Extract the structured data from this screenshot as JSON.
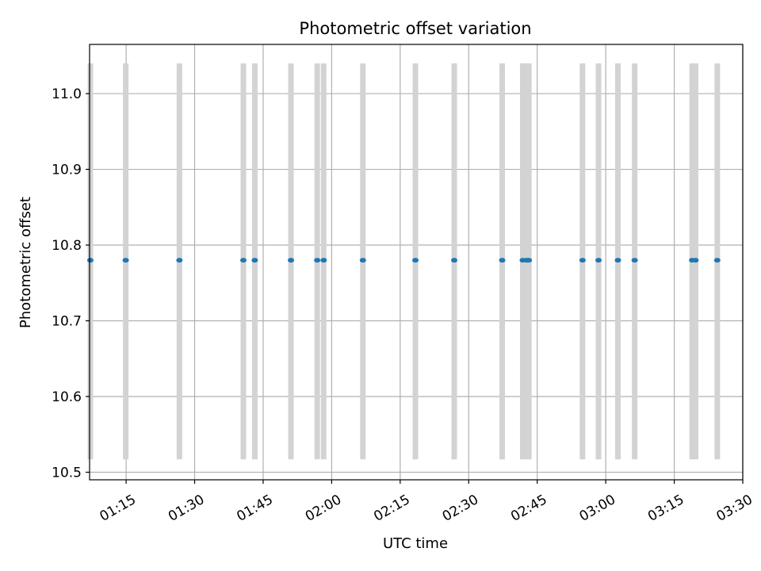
{
  "chart_data": {
    "type": "scatter",
    "title": "Photometric offset variation",
    "xlabel": "UTC time",
    "ylabel": "Photometric offset",
    "x_axis_kind": "time",
    "xlim": [
      "01:07",
      "03:30"
    ],
    "ylim": [
      10.49,
      11.065
    ],
    "x_ticks": [
      "01:15",
      "01:30",
      "01:45",
      "02:00",
      "02:15",
      "02:30",
      "02:45",
      "03:00",
      "03:15",
      "03:30"
    ],
    "y_ticks": [
      "10.5",
      "10.6",
      "10.7",
      "10.8",
      "10.9",
      "11.0"
    ],
    "grid": true,
    "exposure_bands": {
      "color": "#d3d3d3",
      "y_range": [
        10.517,
        11.04
      ],
      "times": [
        "01:07:10",
        "01:14:55",
        "01:26:40",
        "01:40:40",
        "01:43:10",
        "01:51:05",
        "01:56:50",
        "01:58:15",
        "02:06:50",
        "02:18:20",
        "02:26:50",
        "02:37:20",
        "02:41:50",
        "02:42:40",
        "02:43:10",
        "02:54:55",
        "02:58:25",
        "03:02:40",
        "03:06:20",
        "03:18:55",
        "03:19:40",
        "03:24:25"
      ]
    },
    "series": [
      {
        "color": "#1f77b4",
        "points": [
          {
            "x": "01:07:10",
            "y": 10.78
          },
          {
            "x": "01:14:55",
            "y": 10.78
          },
          {
            "x": "01:26:40",
            "y": 10.78
          },
          {
            "x": "01:40:40",
            "y": 10.78
          },
          {
            "x": "01:43:10",
            "y": 10.78
          },
          {
            "x": "01:51:05",
            "y": 10.78
          },
          {
            "x": "01:56:50",
            "y": 10.78
          },
          {
            "x": "01:58:15",
            "y": 10.78
          },
          {
            "x": "02:06:50",
            "y": 10.78
          },
          {
            "x": "02:18:20",
            "y": 10.78
          },
          {
            "x": "02:26:50",
            "y": 10.78
          },
          {
            "x": "02:37:20",
            "y": 10.78
          },
          {
            "x": "02:41:50",
            "y": 10.78
          },
          {
            "x": "02:42:40",
            "y": 10.78
          },
          {
            "x": "02:43:10",
            "y": 10.78
          },
          {
            "x": "02:54:55",
            "y": 10.78
          },
          {
            "x": "02:58:25",
            "y": 10.78
          },
          {
            "x": "03:02:40",
            "y": 10.78
          },
          {
            "x": "03:06:20",
            "y": 10.78
          },
          {
            "x": "03:18:55",
            "y": 10.78
          },
          {
            "x": "03:19:40",
            "y": 10.78
          },
          {
            "x": "03:24:25",
            "y": 10.78
          }
        ]
      }
    ]
  }
}
